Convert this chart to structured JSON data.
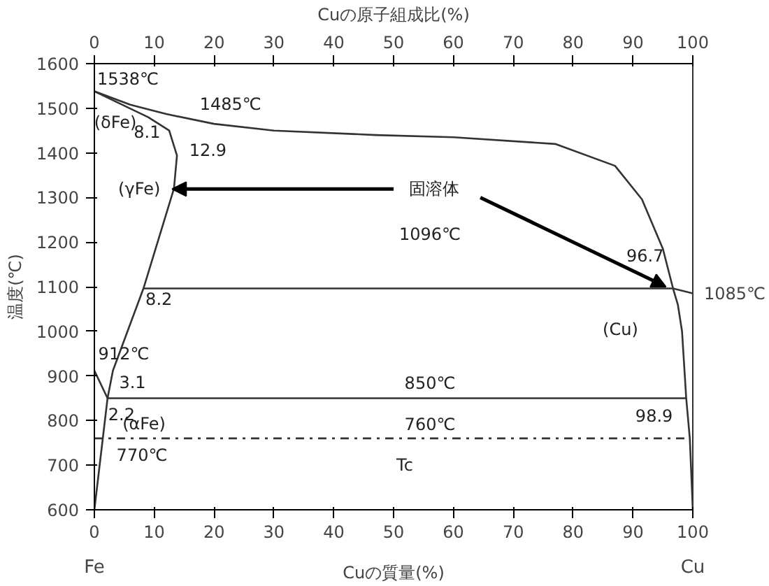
{
  "chart_data": {
    "type": "line",
    "xlabel": "Cuの質量(%)",
    "x2label": "Cuの原子組成比(%)",
    "ylabel": "温度(℃)",
    "xlim": [
      0,
      100
    ],
    "ylim": [
      600,
      1600
    ],
    "xticks": [
      0,
      10,
      20,
      30,
      40,
      50,
      60,
      70,
      80,
      90,
      100
    ],
    "yticks": [
      600,
      700,
      800,
      900,
      1000,
      1100,
      1200,
      1300,
      1400,
      1500,
      1600
    ],
    "x2lim": [
      0,
      100
    ],
    "x2ticks": [
      0,
      10,
      20,
      30,
      40,
      50,
      60,
      70,
      80,
      90,
      100
    ],
    "grid": false,
    "marker": "none",
    "line_style": "solid",
    "series": [
      {
        "color": "#333333",
        "x": [
          0,
          6,
          12,
          20,
          30,
          47,
          60,
          77,
          87,
          91.5,
          95,
          96.7,
          100
        ],
        "values": [
          1538,
          1508,
          1487,
          1465,
          1450,
          1440,
          1435,
          1420,
          1371,
          1296,
          1185,
          1096,
          1085
        ]
      },
      {
        "color": "#333333",
        "x": [
          0,
          9,
          12.5,
          13.8,
          13.3,
          8.2,
          3.1,
          2.2,
          0
        ],
        "values": [
          1538,
          1480,
          1450,
          1394,
          1320,
          1096,
          912,
          850,
          600
        ]
      },
      {
        "color": "#333333",
        "x": [
          0,
          2.2
        ],
        "values": [
          912,
          850
        ]
      },
      {
        "color": "#333333",
        "x": [
          96.7,
          97.5,
          98.2,
          98.9,
          99.5,
          100
        ],
        "values": [
          1096,
          1060,
          1000,
          850,
          760,
          600
        ]
      },
      {
        "color": "#333333",
        "x": [
          8.2,
          96.7
        ],
        "values": [
          1096,
          1096
        ]
      },
      {
        "color": "#333333",
        "x": [
          2.2,
          98.9
        ],
        "values": [
          850,
          850
        ]
      },
      {
        "color": "#333333",
        "x": [
          0,
          99.5
        ],
        "values": [
          760,
          760
        ],
        "line_style": "dashed"
      }
    ],
    "annotations": [
      {
        "text": "1538℃",
        "x": 0,
        "y": 1538
      },
      {
        "text": "1485℃",
        "x": 12,
        "y": 1487
      },
      "(δFe)",
      {
        "text": "8.1",
        "x": 8.1,
        "y": 1485
      },
      {
        "text": "12.9",
        "x": 12.9,
        "y": 1485
      },
      "(γFe)",
      {
        "text": "固溶体",
        "x": 95.5,
        "y": 1100
      },
      {
        "text": "1096℃",
        "x": 50,
        "y": 1096
      },
      {
        "text": "96.7",
        "x": 96.7,
        "y": 1096
      },
      {
        "text": "1085℃",
        "x": 100,
        "y": 1085
      },
      {
        "text": "8.2",
        "x": 8.2,
        "y": 1096
      },
      "(Cu)",
      {
        "text": "912℃",
        "x": 0,
        "y": 912
      },
      {
        "text": "3.1",
        "x": 3.1,
        "y": 912
      },
      {
        "text": "850℃",
        "x": 50,
        "y": 850
      },
      {
        "text": "2.2",
        "x": 2.2,
        "y": 850
      },
      "(αFe)",
      {
        "text": "98.9",
        "x": 98.9,
        "y": 850
      },
      {
        "text": "760℃",
        "x": 50,
        "y": 760
      },
      {
        "text": "770℃",
        "x": 0,
        "y": 770
      },
      {
        "text": "Tc",
        "x": 50,
        "y": 760
      },
      "Fe",
      "Cu"
    ]
  }
}
